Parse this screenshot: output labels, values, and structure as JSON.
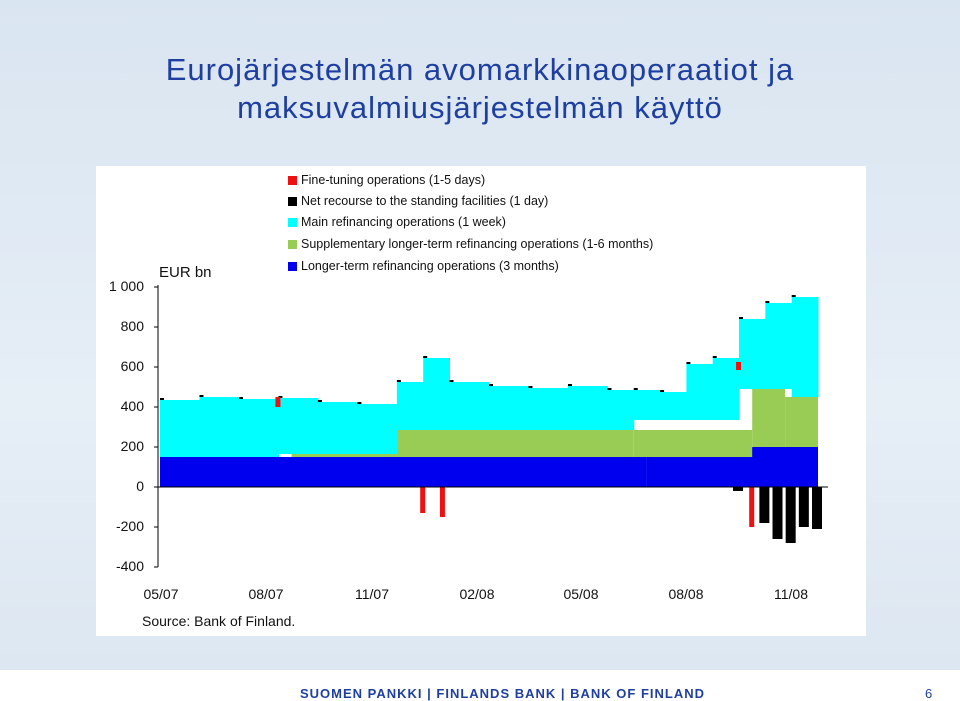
{
  "title": {
    "line1": "Eurojärjestelmän avomarkkinaoperaatiot ja",
    "line2": "maksuvalmiusjärjestelmän käyttö"
  },
  "footer": {
    "text": "SUOMEN PANKKI | FINLANDS BANK | BANK OF FINLAND",
    "page": "6"
  },
  "chart_data": {
    "type": "bar",
    "subtype": "stacked-area-like bars",
    "unit_label": "EUR bn",
    "source": "Source: Bank of Finland.",
    "ylim": [
      -400,
      1000
    ],
    "yticks": [
      "1 000",
      "800",
      "600",
      "400",
      "200",
      "0",
      "-200",
      "-400"
    ],
    "xticks": [
      "05/07",
      "08/07",
      "11/07",
      "02/08",
      "05/08",
      "08/08",
      "11/08"
    ],
    "legend": [
      {
        "name": "Fine-tuning operations (1-5 days)",
        "color": "#ee1111"
      },
      {
        "name": "Net recourse to the standing facilities (1 day)",
        "color": "#000000"
      },
      {
        "name": "Main refinancing operations (1 week)",
        "color": "#00ffff"
      },
      {
        "name": "Supplementary longer-term refinancing operations (1-6 months)",
        "color": "#99cc55"
      },
      {
        "name": "Longer-term refinancing operations (3 months)",
        "color": "#0000ee"
      }
    ],
    "series": [
      {
        "name": "Longer-term refinancing operations (3 months)",
        "segments": [
          [
            0,
            0.74,
            150
          ],
          [
            0.74,
            1.0,
            200
          ]
        ]
      },
      {
        "name": "Supplementary longer-term refinancing operations (1-6 months)",
        "segments": [
          [
            0.2,
            0.36,
            15
          ],
          [
            0.36,
            0.72,
            135
          ],
          [
            0.72,
            0.9,
            135
          ],
          [
            0.9,
            0.95,
            290
          ],
          [
            0.95,
            1.0,
            250
          ]
        ]
      },
      {
        "name": "Main refinancing operations (1 week)",
        "points": [
          [
            0.0,
            285
          ],
          [
            0.06,
            300
          ],
          [
            0.12,
            290
          ],
          [
            0.18,
            280
          ],
          [
            0.24,
            260
          ],
          [
            0.3,
            250
          ],
          [
            0.36,
            240
          ],
          [
            0.4,
            360
          ],
          [
            0.44,
            240
          ],
          [
            0.5,
            220
          ],
          [
            0.56,
            210
          ],
          [
            0.62,
            220
          ],
          [
            0.68,
            200
          ],
          [
            0.72,
            150
          ],
          [
            0.76,
            140
          ],
          [
            0.8,
            280
          ],
          [
            0.84,
            310
          ],
          [
            0.88,
            350
          ],
          [
            0.92,
            430
          ],
          [
            0.96,
            500
          ],
          [
            1.0,
            290
          ]
        ]
      },
      {
        "name": "Fine-tuning operations (1-5 days)",
        "spikes": [
          [
            0.18,
            50
          ],
          [
            0.4,
            -130
          ],
          [
            0.43,
            -150
          ],
          [
            0.88,
            40
          ],
          [
            0.9,
            -200
          ],
          [
            0.92,
            -160
          ],
          [
            0.94,
            -180
          ]
        ]
      },
      {
        "name": "Net recourse to the standing facilities (1 day)",
        "spikes": [
          [
            0.88,
            -20
          ],
          [
            0.92,
            -180
          ],
          [
            0.94,
            -260
          ],
          [
            0.96,
            -280
          ],
          [
            0.98,
            -200
          ],
          [
            1.0,
            -210
          ]
        ]
      }
    ]
  }
}
